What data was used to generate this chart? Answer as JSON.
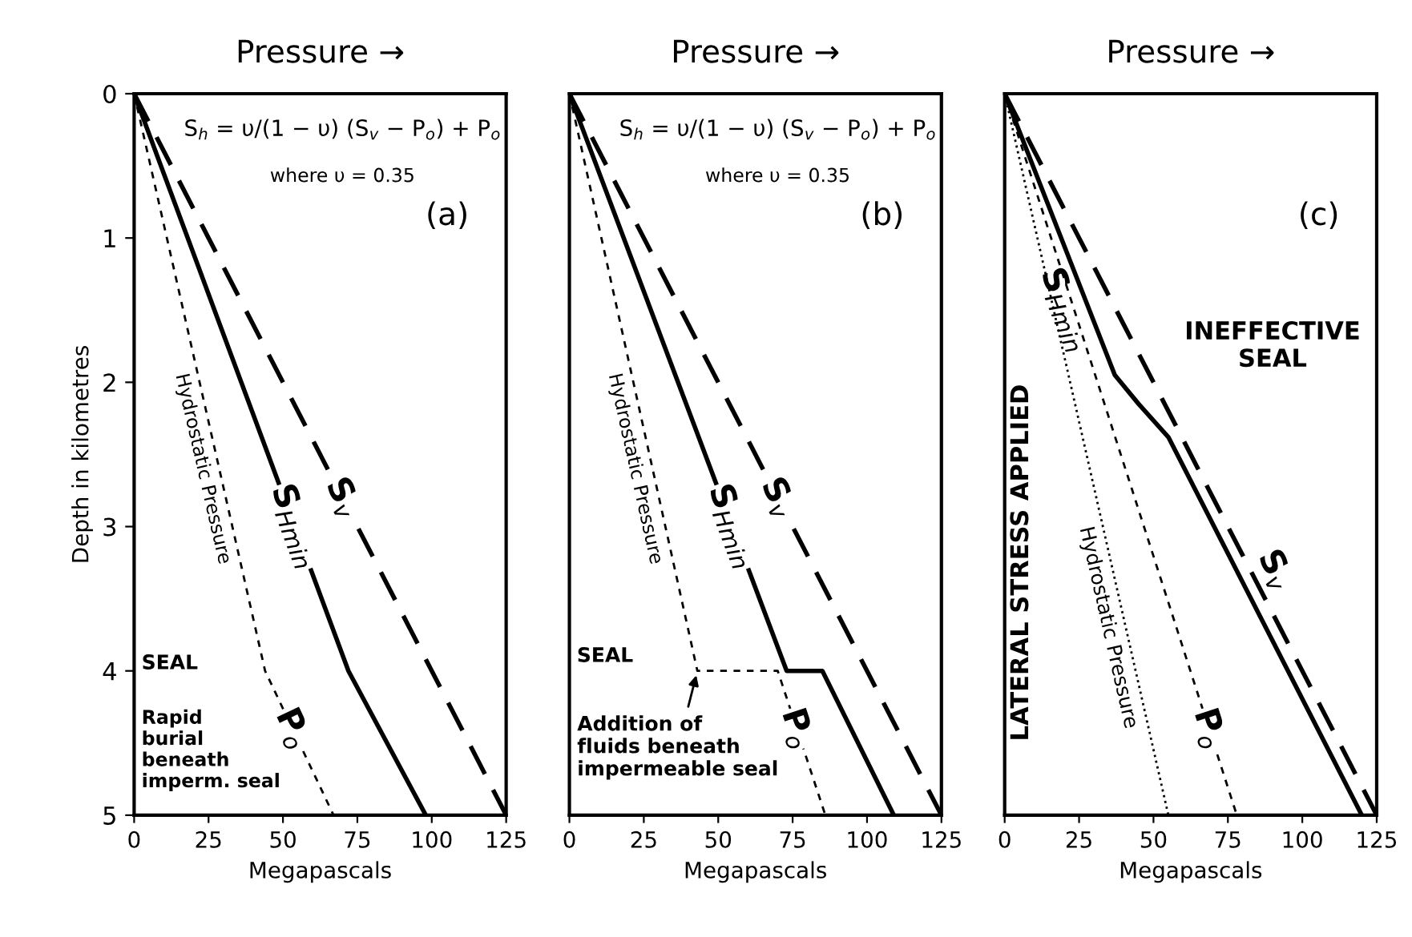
{
  "chart_data": [
    {
      "type": "line",
      "title": "Pressure →",
      "xlabel": "Megapascals",
      "ylabel": "Depth in kilometres",
      "xlim": [
        0,
        125
      ],
      "xticks": [
        0,
        25,
        50,
        75,
        100,
        125
      ],
      "ylim": [
        5,
        0
      ],
      "yticks": [
        0,
        1,
        2,
        3,
        4,
        5
      ],
      "grid": false,
      "series": [
        {
          "name": "S$_{v}$",
          "color": "#000000",
          "line_style": "dashed",
          "x": [
            0,
            125
          ],
          "values": [
            0,
            5
          ]
        },
        {
          "name": "S$_{Hmin}$",
          "color": "#000000",
          "line_style": "solid",
          "x": [
            0,
            72,
            98
          ],
          "values": [
            0,
            4,
            5
          ]
        },
        {
          "name": "P$_{o}$",
          "color": "#000000",
          "line_style": "dashed",
          "x": [
            0,
            44,
            67
          ],
          "values": [
            0,
            4,
            5
          ]
        }
      ],
      "annotations": [
        "S$_{h}$ = υ/(1 − υ) (S$_{v}$ − P$_{o}$) + P$_{o}$",
        "where υ = 0.35",
        "(a)",
        "SEAL",
        "Rapid\nburial\nbeneath\nimperm. seal",
        {
          "text": "Hydrostatic Pressure",
          "x": 29,
          "y": 2.6
        }
      ]
    },
    {
      "type": "line",
      "title": "Pressure →",
      "xlabel": "Megapascals",
      "xlim": [
        0,
        125
      ],
      "xticks": [
        0,
        25,
        50,
        75,
        100,
        125
      ],
      "ylim": [
        5,
        0
      ],
      "yticks": [
        0,
        1,
        2,
        3,
        4,
        5
      ],
      "tick_labels": "x",
      "grid": false,
      "legend": false,
      "series": [
        {
          "name": "S$_{v}$",
          "color": "#000000",
          "line_style": "dashed",
          "x": [
            0,
            125
          ],
          "values": [
            0,
            5
          ]
        },
        {
          "name": "S$_{Hmin}$",
          "color": "#000000",
          "line_style": "solid",
          "x": [
            0,
            73,
            85,
            109
          ],
          "values": [
            0,
            4,
            4,
            5
          ]
        },
        {
          "name": "P$_{o}$",
          "color": "#000000",
          "line_style": "dashed",
          "x": [
            0,
            43,
            70,
            86
          ],
          "values": [
            0,
            4,
            4,
            5
          ]
        }
      ],
      "annotations": [
        "S$_{h}$ = υ/(1 − υ) (S$_{v}$ − P$_{o}$) + P$_{o}$",
        "where υ = 0.35",
        "(b)",
        "SEAL",
        {
          "text": "Hydrostatic Pressure",
          "x": 28,
          "y": 2.6
        },
        {
          "text": "Addition of\nfluids beneath\nimpermeable seal",
          "x": 43,
          "y": 4
        }
      ]
    },
    {
      "type": "line",
      "title": "Pressure →",
      "xlabel": "Megapascals",
      "xlim": [
        0,
        125
      ],
      "xticks": [
        0,
        25,
        50,
        75,
        100,
        125
      ],
      "ylim": [
        5,
        0
      ],
      "yticks": [
        0,
        1,
        2,
        3,
        4,
        5
      ],
      "tick_labels": "x",
      "grid": false,
      "legend": false,
      "series": [
        {
          "name": "S$_{v}$",
          "color": "#000000",
          "line_style": "dashed",
          "x": [
            0,
            125
          ],
          "values": [
            0,
            5
          ]
        },
        {
          "name": "S$_{Hmin}$",
          "color": "#000000",
          "line_style": "solid",
          "x": [
            0,
            37,
            45,
            55,
            120
          ],
          "values": [
            0,
            1.95,
            2.15,
            2.38,
            5
          ]
        },
        {
          "name": "P$_{o}$",
          "color": "#000000",
          "line_style": "dashed",
          "x": [
            0,
            78
          ],
          "values": [
            0,
            5
          ]
        },
        {
          "name": "Hydrostatic Pressure",
          "color": "#000000",
          "line_style": "dotted",
          "x": [
            0,
            55
          ],
          "values": [
            0,
            5
          ]
        }
      ],
      "annotations": [
        "(c)",
        "INEFFECTIVE\nSEAL",
        "LATERAL STRESS APPLIED"
      ]
    }
  ]
}
